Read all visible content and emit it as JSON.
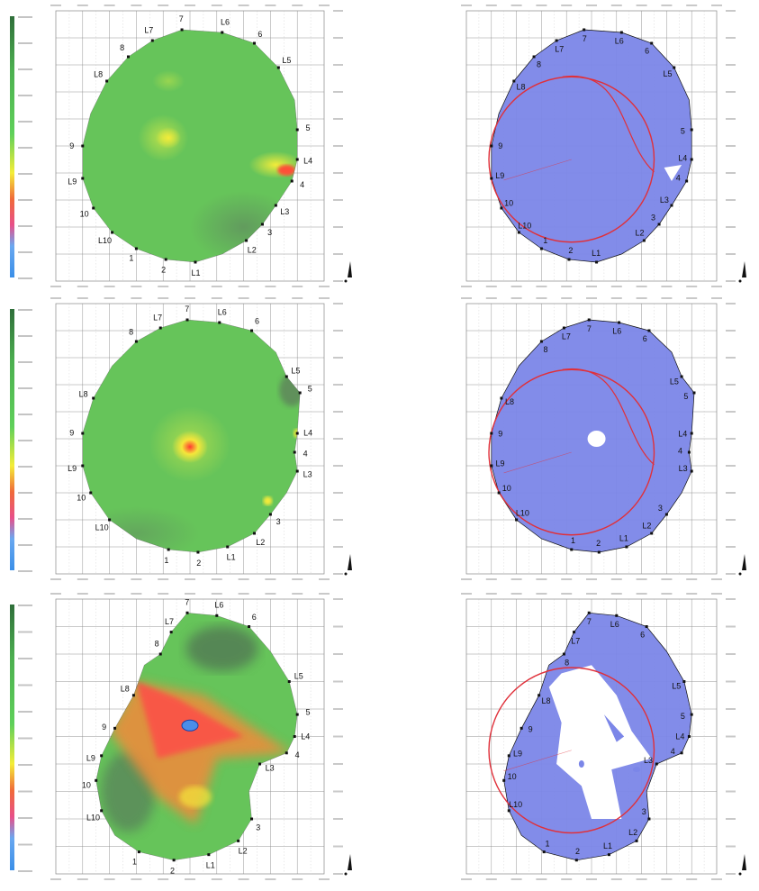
{
  "colors": {
    "background": "#ffffff",
    "grid": "#8a8a8a",
    "heatmap_base": "#66c45a",
    "heatmap_hot": "#ff4a3d",
    "heatmap_warm": "#f2e23a",
    "heatmap_cold": "#4a8ee8",
    "coverage_fill": "#7b86e8",
    "circle_overlay": "#e0303a",
    "boundary": "#111111",
    "legend_gradient": [
      "#3a8fe8",
      "#e8508a",
      "#f4ed38",
      "#5fd05a",
      "#4caf50",
      "#2f6e3a"
    ]
  },
  "panels": [
    {
      "heatmap_labels": [
        "7",
        "L6",
        "6",
        "L5",
        "5",
        "L4",
        "4",
        "L3",
        "3",
        "L2",
        "L1",
        "2",
        "1",
        "L10",
        "10",
        "L9",
        "9",
        "L8",
        "8",
        "L7"
      ],
      "coverage_labels": [
        "7",
        "L6",
        "6",
        "L5",
        "5",
        "L4",
        "4",
        "L3",
        "3",
        "L2",
        "L1",
        "2",
        "1",
        "L10",
        "10",
        "L9",
        "9",
        "L8",
        "8",
        "L7"
      ]
    },
    {
      "heatmap_labels": [
        "7",
        "L6",
        "6",
        "L5",
        "5",
        "L4",
        "4",
        "L3",
        "3",
        "L2",
        "L1",
        "2",
        "1",
        "L10",
        "10",
        "L9",
        "9",
        "L8",
        "8",
        "L7"
      ],
      "coverage_labels": [
        "7",
        "L6",
        "6",
        "L5",
        "5",
        "L4",
        "4",
        "L3",
        "3",
        "L2",
        "L1",
        "2",
        "1",
        "L10",
        "10",
        "L9",
        "9",
        "L8",
        "8",
        "L7"
      ]
    },
    {
      "heatmap_labels": [
        "7",
        "L6",
        "6",
        "L5",
        "5",
        "L4",
        "4",
        "L3",
        "3",
        "L2",
        "L1",
        "2",
        "1",
        "L10",
        "10",
        "L9",
        "9",
        "L8",
        "8",
        "L7"
      ],
      "coverage_labels": [
        "7",
        "L6",
        "6",
        "L5",
        "5",
        "L4",
        "4",
        "L3",
        "3",
        "L2",
        "L1",
        "2",
        "1",
        "L10",
        "10",
        "L9",
        "9",
        "L8",
        "8",
        "L7"
      ]
    }
  ]
}
